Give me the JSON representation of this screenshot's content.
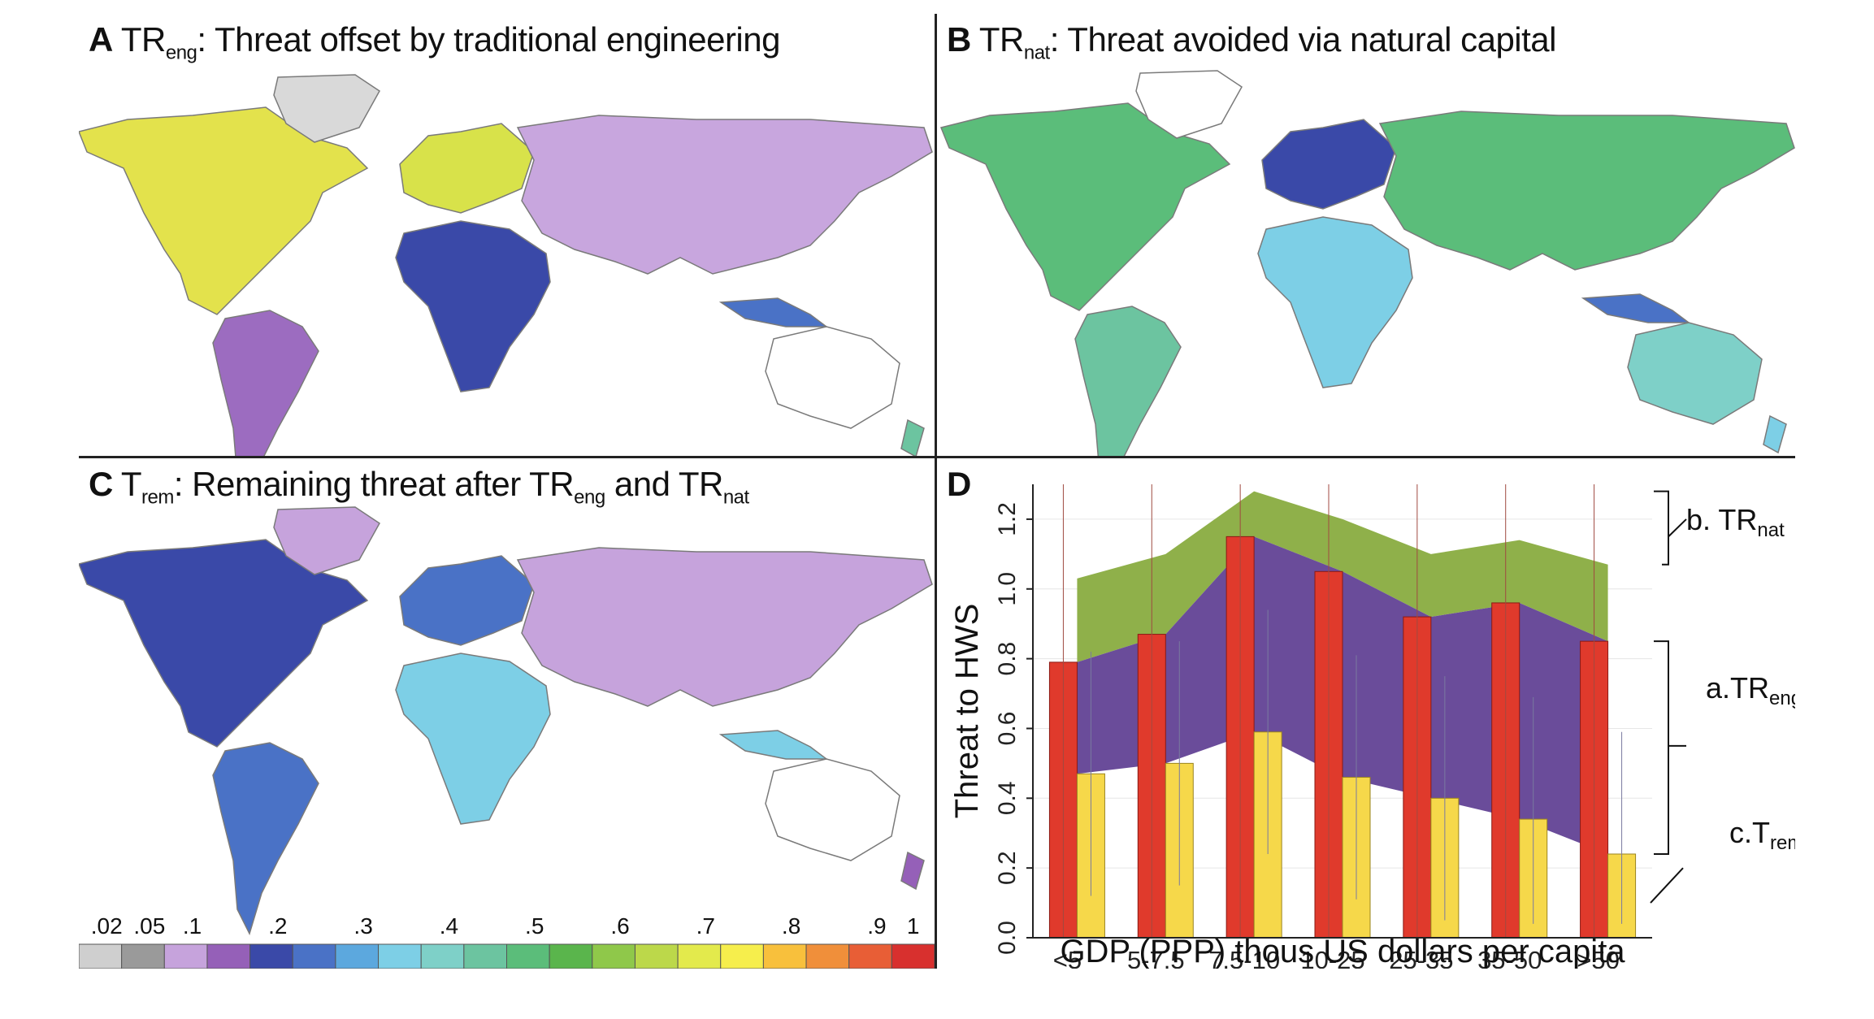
{
  "panels": {
    "a": {
      "letter": "A",
      "title_pre": "TR",
      "title_sub": "eng",
      "title_post": ": Threat offset by traditional engineering"
    },
    "b": {
      "letter": "B",
      "title_pre": "TR",
      "title_sub": "nat",
      "title_post": ": Threat avoided via natural capital"
    },
    "c": {
      "letter": "C",
      "title_pre": "T",
      "title_sub": "rem",
      "title_post": ": Remaining threat after TR",
      "title_sub2": "eng",
      "title_mid": " and TR",
      "title_sub3": "nat"
    },
    "d": {
      "letter": "D"
    }
  },
  "colorbar": {
    "labels": [
      ".02",
      ".05",
      ".1",
      ".2",
      ".3",
      ".4",
      ".5",
      ".6",
      ".7",
      ".8",
      ".9",
      "1"
    ],
    "colors": [
      "#cfcfcf",
      "#9a9a9a",
      "#c6a3dc",
      "#9560b8",
      "#3a49a8",
      "#4a72c6",
      "#5ca8de",
      "#7dcfe6",
      "#7ed0c8",
      "#6cc4a0",
      "#5bbd7a",
      "#5ab54c",
      "#8fc84a",
      "#bcd84a",
      "#e3ea4c",
      "#f6ee4c",
      "#f8c03c",
      "#f08f3a",
      "#e85e36",
      "#d8302e"
    ]
  },
  "map_colors": {
    "land_outline": "#7a7a7a",
    "water": "#ffffff"
  },
  "chart_data": {
    "type": "bar",
    "categories": [
      "<5",
      "5-7.5",
      "7.5-10",
      "10-25",
      "25-35",
      "35-50",
      ">50"
    ],
    "series": [
      {
        "name": "Threat to HWS (red)",
        "color": "#e03a2c",
        "values": [
          0.79,
          0.87,
          1.15,
          1.05,
          0.92,
          0.96,
          0.85
        ]
      },
      {
        "name": "c.T rem (yellow)",
        "color": "#f6d84a",
        "values": [
          0.47,
          0.5,
          0.59,
          0.46,
          0.4,
          0.34,
          0.24
        ]
      }
    ],
    "band_tr_nat_top": [
      1.03,
      1.1,
      1.28,
      1.2,
      1.1,
      1.14,
      1.07
    ],
    "band_tr_eng_top": [
      0.79,
      0.87,
      1.15,
      1.05,
      0.92,
      0.96,
      0.85
    ],
    "band_t_rem_top": [
      0.47,
      0.5,
      0.59,
      0.46,
      0.4,
      0.34,
      0.24
    ],
    "band_colors": {
      "tr_nat": "#8fb04a",
      "tr_eng": "#6a4c9a"
    },
    "xlabel": "GDP (PPP) thous US dollars per capita",
    "ylabel": "Threat to HWS",
    "ylim": [
      0,
      1.3
    ],
    "yticks": [
      "0.0",
      "0.2",
      "0.4",
      "0.6",
      "0.8",
      "1.0",
      "1.2"
    ],
    "legend": {
      "b_pre": "b. TR",
      "b_sub": "nat",
      "a_pre": "a.TR",
      "a_sub": "eng",
      "c_pre": "c.T",
      "c_sub": "rem"
    }
  }
}
